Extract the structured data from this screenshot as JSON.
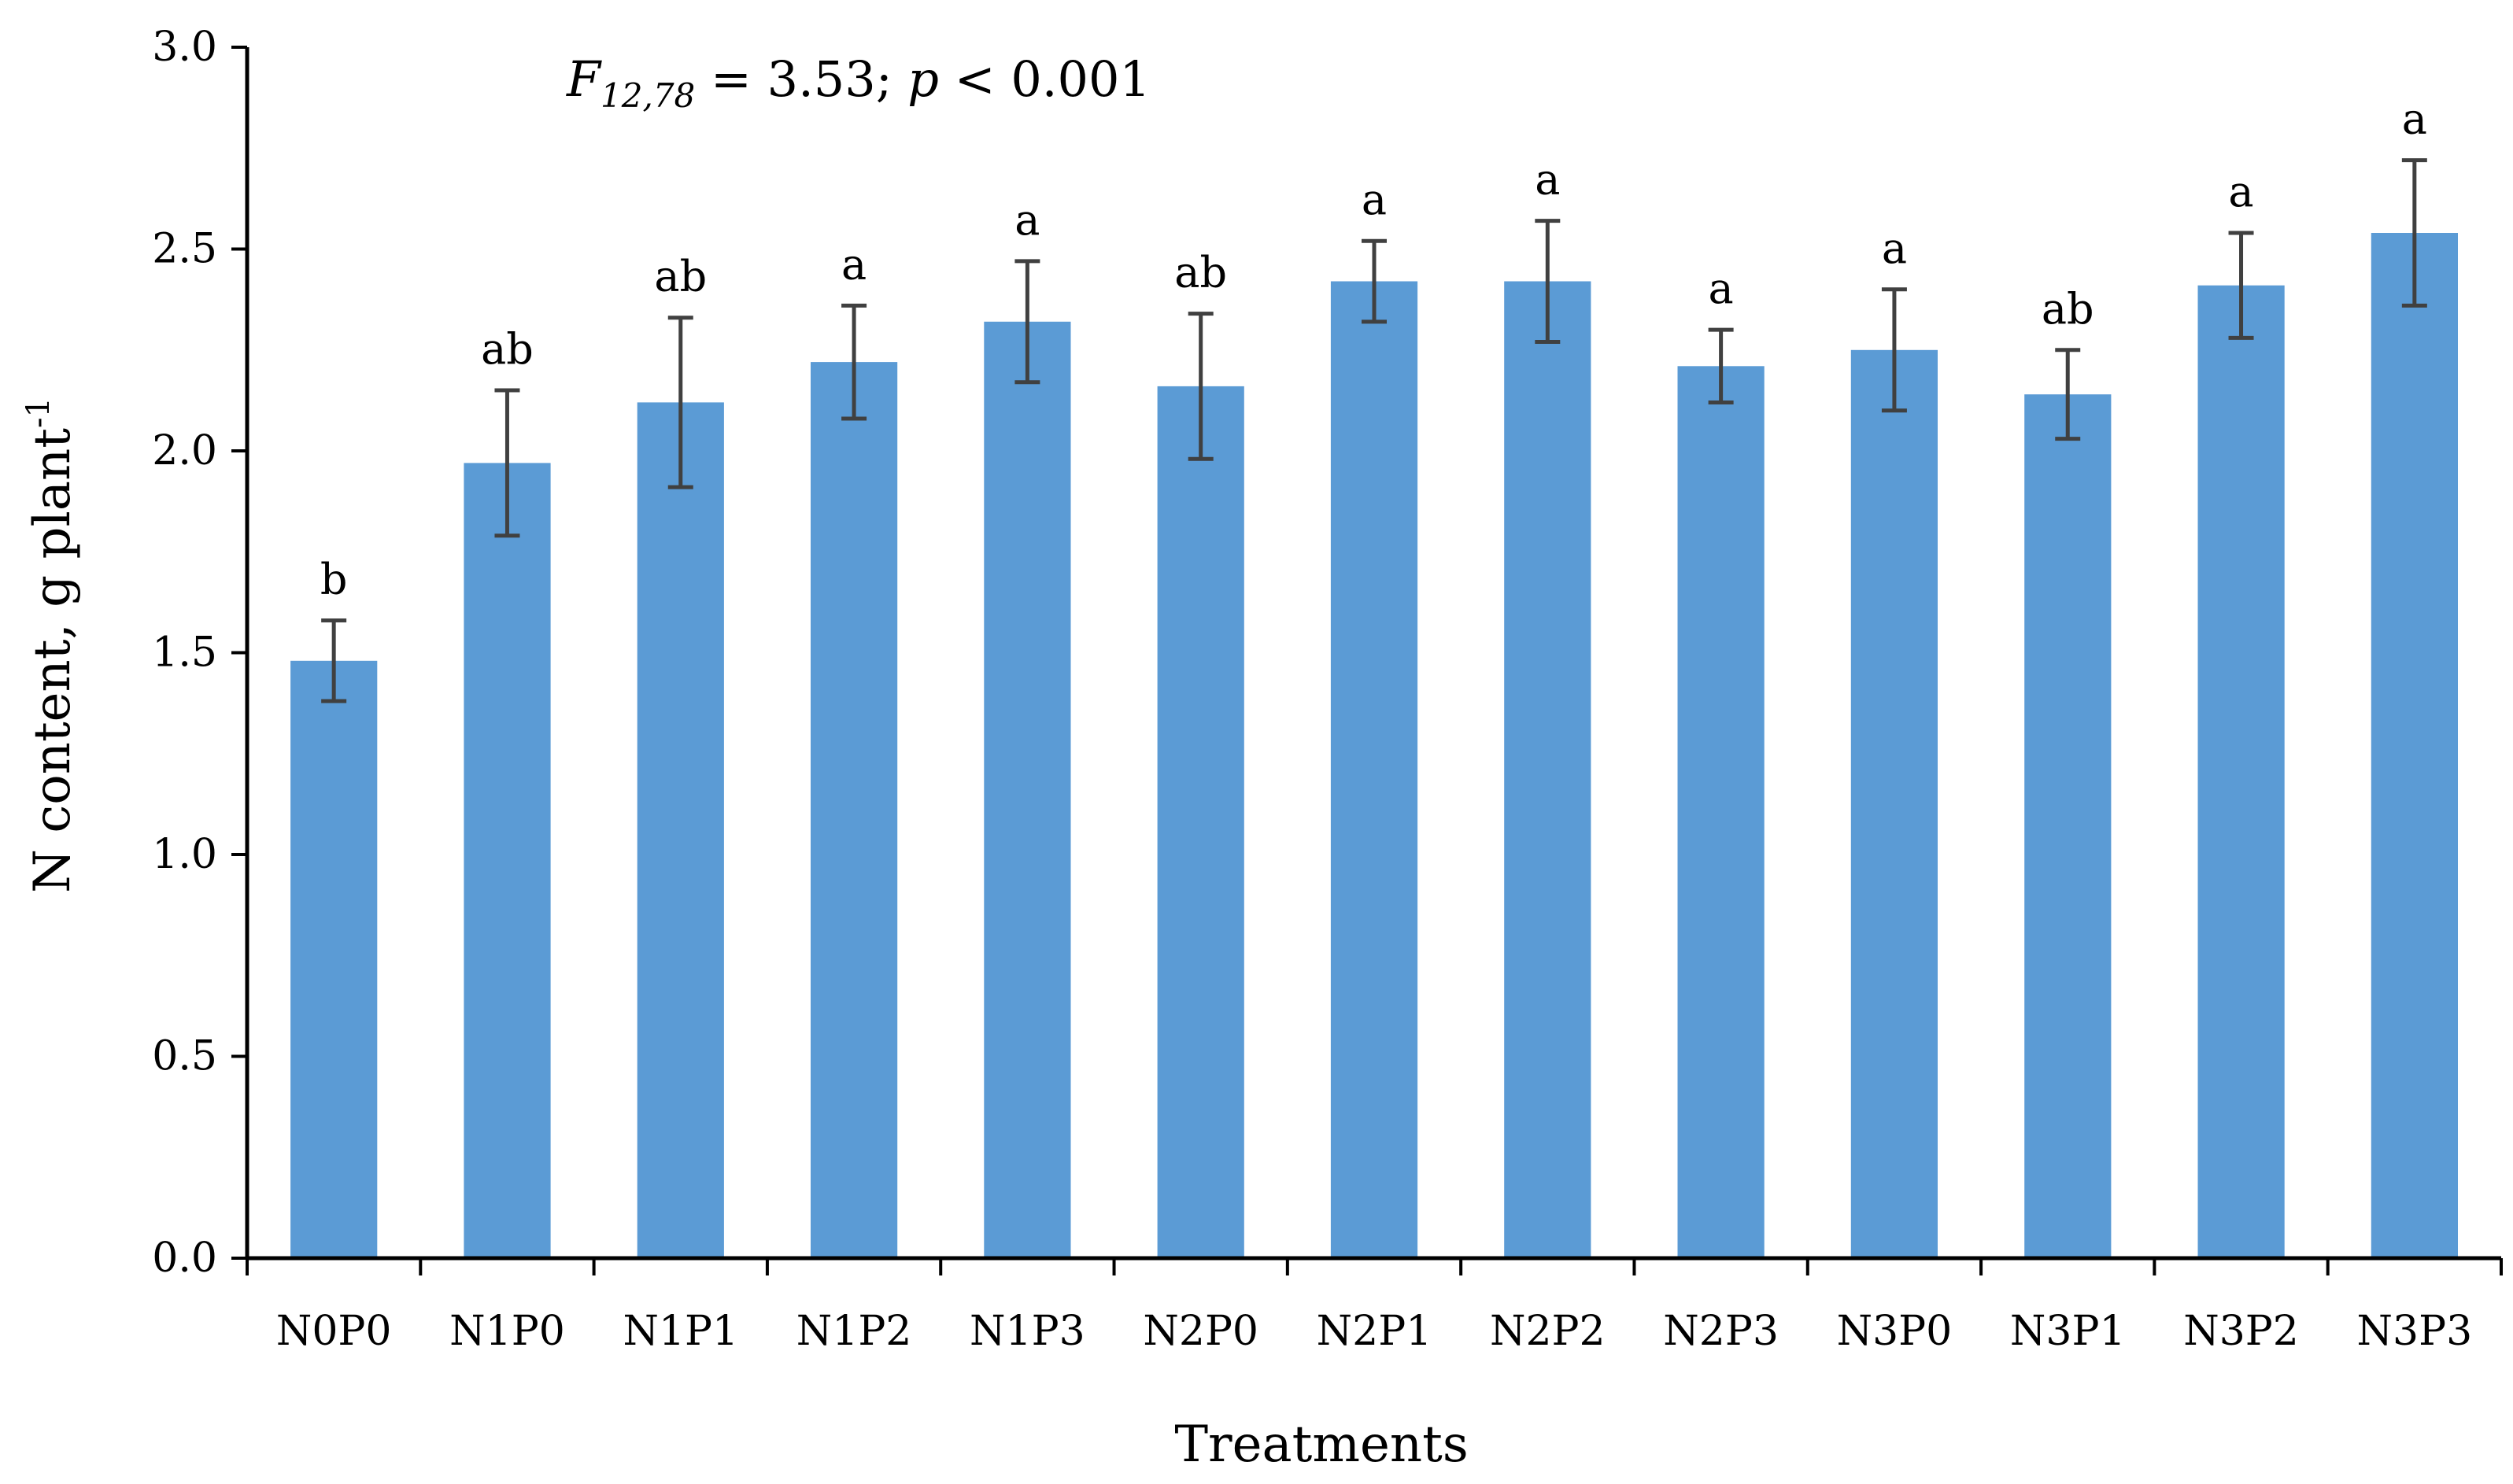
{
  "chart_data": {
    "type": "bar",
    "annotation": {
      "f_symbol": "F",
      "f_subscript": "12,78",
      "equals_text": " = 3.53; ",
      "p_symbol": "p",
      "p_text": " < 0.001"
    },
    "xlabel": "Treatments",
    "ylabel": {
      "main": "N content, g plant",
      "superscript": "-1"
    },
    "ylim": [
      0,
      3.0
    ],
    "yticks": [
      "0.0",
      "0.5",
      "1.0",
      "1.5",
      "2.0",
      "2.5",
      "3.0"
    ],
    "ytick_values": [
      0,
      0.5,
      1.0,
      1.5,
      2.0,
      2.5,
      3.0
    ],
    "categories": [
      "N0P0",
      "N1P0",
      "N1P1",
      "N1P2",
      "N1P3",
      "N2P0",
      "N2P1",
      "N2P2",
      "N2P3",
      "N3P0",
      "N3P1",
      "N3P2",
      "N3P3"
    ],
    "values": [
      1.48,
      1.97,
      2.12,
      2.22,
      2.32,
      2.16,
      2.42,
      2.42,
      2.21,
      2.25,
      2.14,
      2.41,
      2.54
    ],
    "errors": [
      0.1,
      0.18,
      0.21,
      0.14,
      0.15,
      0.18,
      0.1,
      0.15,
      0.09,
      0.15,
      0.11,
      0.13,
      0.18
    ],
    "significance_labels": [
      "b",
      "ab",
      "ab",
      "a",
      "a",
      "ab",
      "a",
      "a",
      "a",
      "a",
      "ab",
      "a",
      "a"
    ],
    "grid": false,
    "legend": "none",
    "colors": {
      "bar": "#5b9bd5",
      "error_bar": "#404040",
      "axis": "#000000"
    }
  }
}
